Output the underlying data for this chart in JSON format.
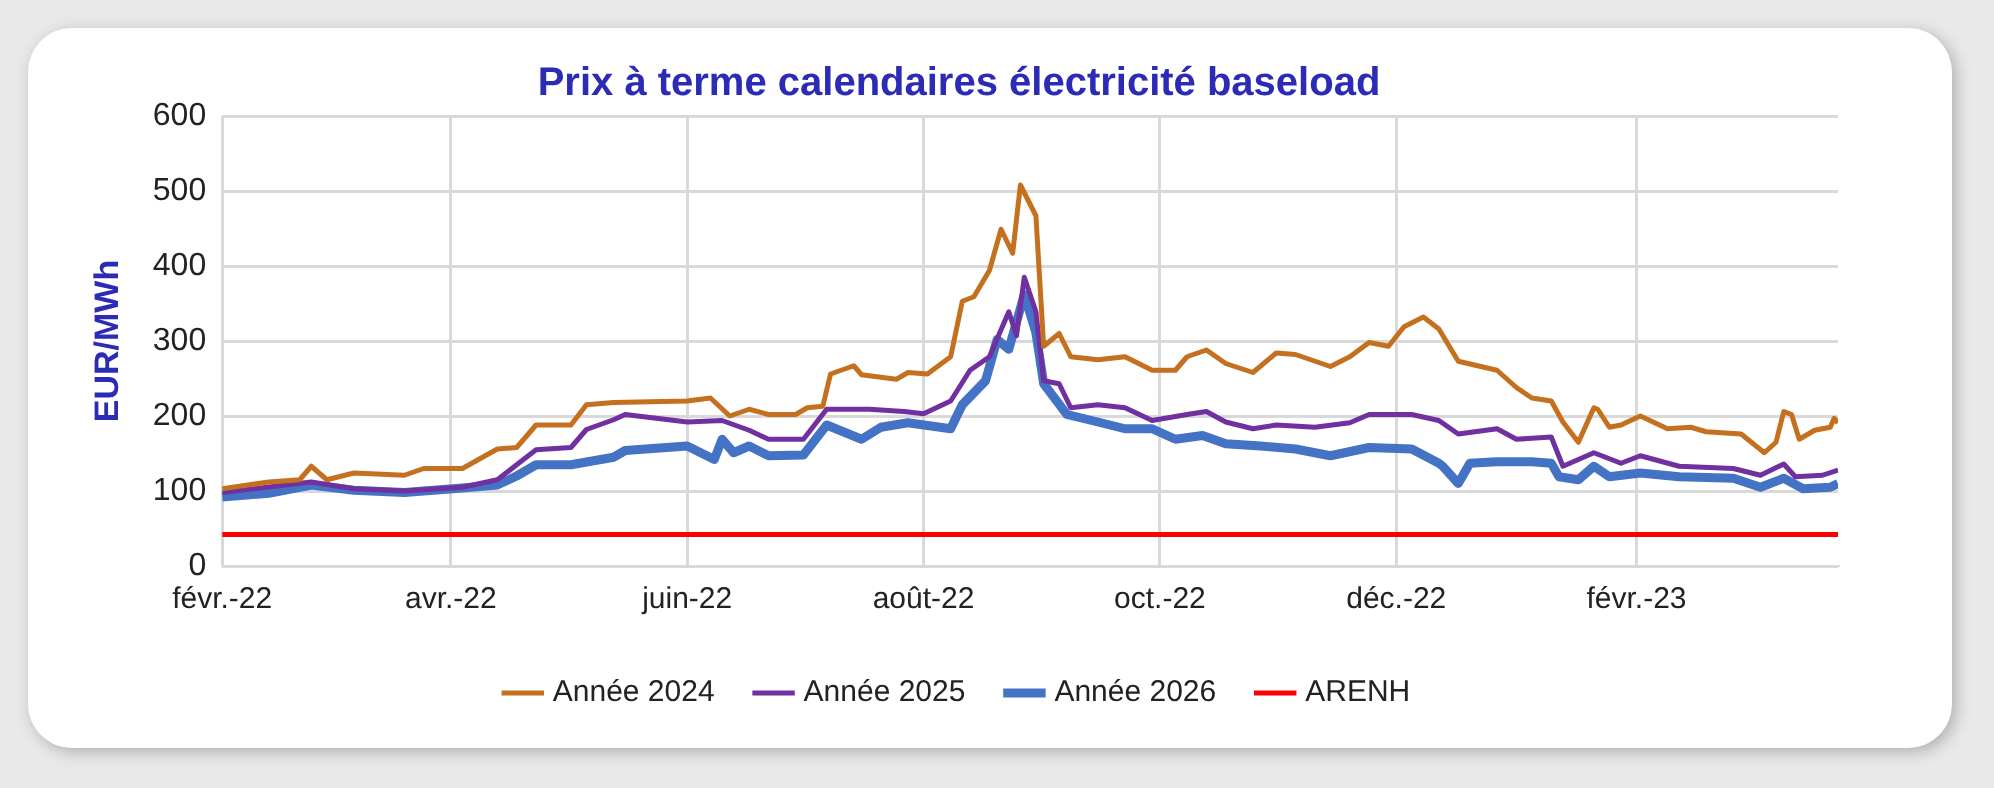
{
  "chart_data": {
    "type": "line",
    "title": "Prix à terme calendaires électricité baseload",
    "ylabel": "EUR/MWh",
    "xlim": [
      "2022-02-01",
      "2023-03-25"
    ],
    "xticks": [
      {
        "value": "2022-02-01",
        "label": "févr.-22"
      },
      {
        "value": "2022-04-01",
        "label": "avr.-22"
      },
      {
        "value": "2022-06-01",
        "label": "juin-22"
      },
      {
        "value": "2022-08-01",
        "label": "août-22"
      },
      {
        "value": "2022-10-01",
        "label": "oct.-22"
      },
      {
        "value": "2022-12-01",
        "label": "déc.-22"
      },
      {
        "value": "2023-02-01",
        "label": "févr.-23"
      }
    ],
    "ylim": [
      0,
      600
    ],
    "yticks": [
      0,
      100,
      200,
      300,
      400,
      500,
      600
    ],
    "grid": true,
    "legend": "bottom",
    "marker": "none",
    "line_style": "solid",
    "series": [
      {
        "name": "Année 2024",
        "color": "#c5701f",
        "x": [
          "2022-02-01",
          "2022-02-13",
          "2022-02-21",
          "2022-02-24",
          "2022-02-28",
          "2022-03-07",
          "2022-03-20",
          "2022-03-25",
          "2022-04-04",
          "2022-04-13",
          "2022-04-18",
          "2022-04-23",
          "2022-05-02",
          "2022-05-06",
          "2022-05-13",
          "2022-06-01",
          "2022-06-07",
          "2022-06-12",
          "2022-06-17",
          "2022-06-22",
          "2022-06-29",
          "2022-07-02",
          "2022-07-06",
          "2022-07-08",
          "2022-07-14",
          "2022-07-16",
          "2022-07-25",
          "2022-07-28",
          "2022-08-02",
          "2022-08-08",
          "2022-08-11",
          "2022-08-14",
          "2022-08-18",
          "2022-08-21",
          "2022-08-24",
          "2022-08-26",
          "2022-08-30",
          "2022-09-01",
          "2022-09-05",
          "2022-09-08",
          "2022-09-15",
          "2022-09-22",
          "2022-09-29",
          "2022-10-05",
          "2022-10-08",
          "2022-10-13",
          "2022-10-18",
          "2022-10-25",
          "2022-10-31",
          "2022-11-05",
          "2022-11-14",
          "2022-11-19",
          "2022-11-24",
          "2022-11-29",
          "2022-12-03",
          "2022-12-08",
          "2022-12-12",
          "2022-12-17",
          "2022-12-27",
          "2023-01-01",
          "2023-01-05",
          "2023-01-10",
          "2023-01-13",
          "2023-01-17",
          "2023-01-21",
          "2023-01-22",
          "2023-01-25",
          "2023-01-28",
          "2023-02-02",
          "2023-02-09",
          "2023-02-15",
          "2023-02-19",
          "2023-02-28",
          "2023-03-06",
          "2023-03-09",
          "2023-03-11",
          "2023-03-13",
          "2023-03-15",
          "2023-03-19",
          "2023-03-23",
          "2023-03-24",
          "2023-03-25"
        ],
        "values": [
          103,
          112,
          115,
          133,
          115,
          124,
          121,
          130,
          130,
          156,
          158,
          188,
          188,
          215,
          218,
          220,
          224,
          200,
          209,
          202,
          202,
          211,
          213,
          256,
          267,
          255,
          249,
          258,
          256,
          279,
          353,
          359,
          394,
          449,
          417,
          508,
          467,
          293,
          310,
          279,
          275,
          279,
          261,
          261,
          279,
          288,
          270,
          258,
          284,
          282,
          266,
          279,
          298,
          293,
          319,
          332,
          316,
          273,
          261,
          238,
          224,
          220,
          192,
          165,
          211,
          209,
          185,
          188,
          200,
          183,
          185,
          179,
          176,
          151,
          165,
          206,
          202,
          169,
          181,
          185,
          197,
          191
        ]
      },
      {
        "name": "Année 2025",
        "color": "#7030a0",
        "x": [
          "2022-02-01",
          "2022-02-24",
          "2022-03-07",
          "2022-03-20",
          "2022-04-04",
          "2022-04-13",
          "2022-04-18",
          "2022-04-23",
          "2022-05-02",
          "2022-05-06",
          "2022-05-13",
          "2022-05-16",
          "2022-06-01",
          "2022-06-10",
          "2022-06-17",
          "2022-06-22",
          "2022-07-01",
          "2022-07-07",
          "2022-07-18",
          "2022-07-27",
          "2022-08-01",
          "2022-08-08",
          "2022-08-13",
          "2022-08-18",
          "2022-08-23",
          "2022-08-25",
          "2022-08-27",
          "2022-08-30",
          "2022-09-01",
          "2022-09-05",
          "2022-09-08",
          "2022-09-15",
          "2022-09-22",
          "2022-09-29",
          "2022-10-08",
          "2022-10-13",
          "2022-10-18",
          "2022-10-25",
          "2022-10-31",
          "2022-11-10",
          "2022-11-19",
          "2022-11-24",
          "2022-12-05",
          "2022-12-12",
          "2022-12-17",
          "2022-12-27",
          "2023-01-01",
          "2023-01-10",
          "2023-01-13",
          "2023-01-21",
          "2023-01-28",
          "2023-02-02",
          "2023-02-12",
          "2023-02-26",
          "2023-03-05",
          "2023-03-11",
          "2023-03-14",
          "2023-03-21",
          "2023-03-25"
        ],
        "values": [
          98,
          112,
          103,
          100,
          105,
          115,
          135,
          155,
          158,
          182,
          195,
          202,
          192,
          194,
          181,
          169,
          169,
          209,
          209,
          206,
          203,
          220,
          261,
          279,
          339,
          307,
          385,
          339,
          247,
          243,
          211,
          215,
          211,
          194,
          202,
          206,
          192,
          183,
          188,
          185,
          191,
          202,
          202,
          194,
          176,
          183,
          169,
          172,
          133,
          151,
          137,
          147,
          133,
          130,
          121,
          136,
          119,
          121,
          128
        ]
      },
      {
        "name": "Année 2026",
        "color": "#4472c4",
        "x": [
          "2022-02-01",
          "2022-02-13",
          "2022-02-24",
          "2022-03-07",
          "2022-03-20",
          "2022-04-04",
          "2022-04-13",
          "2022-04-18",
          "2022-04-23",
          "2022-05-02",
          "2022-05-13",
          "2022-05-16",
          "2022-06-01",
          "2022-06-08",
          "2022-06-10",
          "2022-06-13",
          "2022-06-17",
          "2022-06-22",
          "2022-07-01",
          "2022-07-07",
          "2022-07-16",
          "2022-07-21",
          "2022-07-28",
          "2022-08-08",
          "2022-08-11",
          "2022-08-17",
          "2022-08-20",
          "2022-08-23",
          "2022-08-27",
          "2022-08-30",
          "2022-09-01",
          "2022-09-07",
          "2022-09-15",
          "2022-09-22",
          "2022-09-29",
          "2022-10-05",
          "2022-10-12",
          "2022-10-18",
          "2022-10-27",
          "2022-11-05",
          "2022-11-14",
          "2022-11-24",
          "2022-12-05",
          "2022-12-12",
          "2022-12-13",
          "2022-12-17",
          "2022-12-20",
          "2022-12-27",
          "2023-01-05",
          "2023-01-10",
          "2023-01-12",
          "2023-01-17",
          "2023-01-21",
          "2023-01-25",
          "2023-02-02",
          "2023-02-12",
          "2023-02-26",
          "2023-03-05",
          "2023-03-11",
          "2023-03-16",
          "2023-03-23",
          "2023-03-25"
        ],
        "values": [
          92,
          97,
          108,
          101,
          98,
          104,
          108,
          120,
          135,
          135,
          145,
          154,
          160,
          142,
          169,
          151,
          160,
          147,
          148,
          188,
          169,
          185,
          191,
          183,
          215,
          247,
          302,
          289,
          362,
          311,
          243,
          202,
          192,
          183,
          183,
          169,
          174,
          163,
          160,
          156,
          147,
          158,
          156,
          137,
          133,
          110,
          137,
          139,
          139,
          137,
          119,
          115,
          133,
          119,
          124,
          119,
          117,
          105,
          117,
          103,
          105,
          110
        ]
      },
      {
        "name": "ARENH",
        "color": "#ff0000",
        "x": [
          "2022-02-01",
          "2023-03-25"
        ],
        "values": [
          42,
          42
        ]
      }
    ]
  }
}
